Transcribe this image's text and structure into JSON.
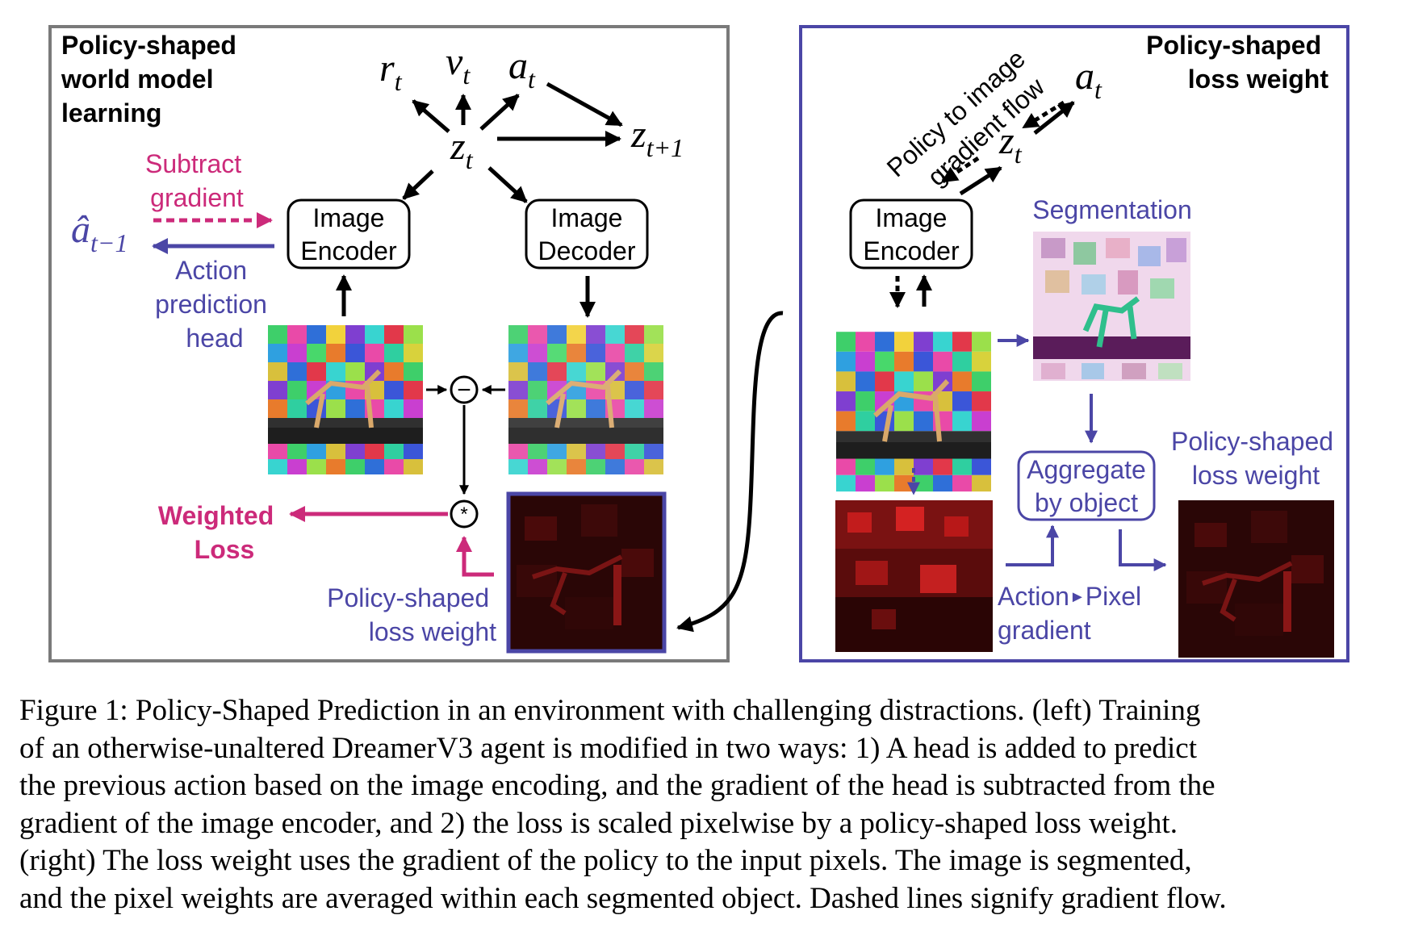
{
  "figure": {
    "left_panel": {
      "title": [
        "Policy-shaped",
        "world model",
        "learning"
      ],
      "encoder": [
        "Image",
        "Encoder"
      ],
      "decoder": [
        "Image",
        "Decoder"
      ],
      "subtract_gradient": [
        "Subtract",
        "gradient"
      ],
      "action_head": [
        "Action",
        "prediction",
        "head"
      ],
      "weighted_loss": [
        "Weighted",
        "Loss"
      ],
      "loss_weight": [
        "Policy-shaped",
        "loss weight"
      ],
      "minus_symbol": "−",
      "times_symbol": "*",
      "math": {
        "r": "r",
        "r_sub": "t",
        "v": "v",
        "v_sub": "t",
        "a": "a",
        "a_sub": "t",
        "z": "z",
        "z_sub": "t",
        "z_next": "z",
        "z_next_sub": "t+1",
        "a_hat": "â",
        "a_hat_sub": "t−1"
      }
    },
    "right_panel": {
      "title": [
        "Policy-shaped",
        "loss weight"
      ],
      "gradient_flow": [
        "Policy to image",
        "gradient flow"
      ],
      "encoder": [
        "Image",
        "Encoder"
      ],
      "segmentation": "Segmentation",
      "aggregate": [
        "Aggregate",
        "by object"
      ],
      "loss_weight": [
        "Policy-shaped",
        "loss weight"
      ],
      "action_pixel": [
        "Action",
        "Pixel",
        "gradient"
      ],
      "math": {
        "a": "a",
        "a_sub": "t",
        "z": "z",
        "z_sub": "t"
      }
    },
    "colors": {
      "magenta": "#cc2a7a",
      "purple": "#4b46a6",
      "gray_border": "#7a7a7a",
      "black": "#000000"
    }
  },
  "caption": {
    "lines": [
      "Figure 1: Policy-Shaped Prediction in an environment with challenging distractions. (left) Training",
      "of an otherwise-unaltered DreamerV3 agent is modified in two ways: 1) A head is added to predict",
      "the previous action based on the image encoding, and the gradient of the head is subtracted from the",
      "gradient of the image encoder, and 2) the loss is scaled pixelwise by a policy-shaped loss weight.",
      "(right) The loss weight uses the gradient of the policy to the input pixels. The image is segmented,",
      "and the pixel weights are averaged within each segmented object. Dashed lines signify gradient flow."
    ]
  }
}
